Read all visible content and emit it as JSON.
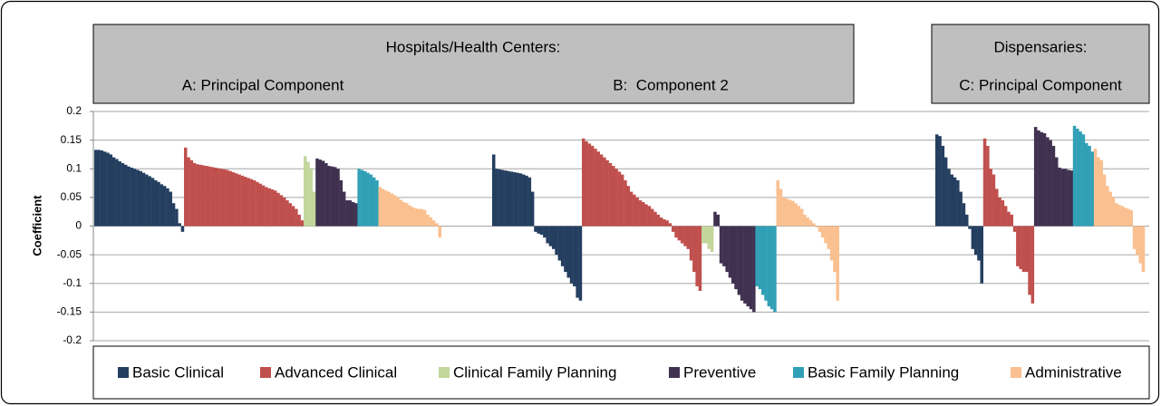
{
  "chart_data": {
    "type": "bar",
    "ylabel": "Coefficient",
    "ylim": [
      -0.2,
      0.2
    ],
    "yticks": [
      0.2,
      0.15,
      0.1,
      0.05,
      0,
      -0.05,
      -0.1,
      -0.15,
      -0.2
    ],
    "grid": true,
    "legend": [
      {
        "name": "Basic Clinical",
        "color": "#243f60"
      },
      {
        "name": "Advanced Clinical",
        "color": "#c0504d"
      },
      {
        "name": "Clinical Family Planning",
        "color": "#c3d69b"
      },
      {
        "name": "Preventive",
        "color": "#403151"
      },
      {
        "name": "Basic Family Planning",
        "color": "#31a0b6"
      },
      {
        "name": "Administrative",
        "color": "#fac090"
      }
    ],
    "headers": [
      {
        "title": "Hospitals/Health Centers:"
      },
      {
        "title": "Dispensaries:"
      }
    ],
    "panels": [
      {
        "title": "A: Principal Component",
        "groups": [
          {
            "values": [
              0.133,
              0.133,
              0.132,
              0.13,
              0.128,
              0.125,
              0.12,
              0.117,
              0.113,
              0.11,
              0.107,
              0.104,
              0.102,
              0.1,
              0.098,
              0.096,
              0.093,
              0.09,
              0.087,
              0.084,
              0.08,
              0.077,
              0.073,
              0.07,
              0.066,
              0.06,
              0.04,
              0.03,
              0.005,
              -0.01
            ]
          },
          {
            "values": [
              0.137,
              0.12,
              0.115,
              0.11,
              0.108,
              0.107,
              0.106,
              0.105,
              0.104,
              0.103,
              0.102,
              0.101,
              0.1,
              0.099,
              0.098,
              0.096,
              0.094,
              0.092,
              0.09,
              0.088,
              0.086,
              0.084,
              0.082,
              0.08,
              0.077,
              0.074,
              0.071,
              0.068,
              0.066,
              0.064,
              0.062,
              0.058,
              0.054,
              0.05,
              0.045,
              0.04,
              0.035,
              0.03,
              0.02,
              0.01
            ]
          },
          {
            "values": [
              0.122,
              0.112,
              0.1,
              0.06
            ]
          },
          {
            "values": [
              0.118,
              0.116,
              0.114,
              0.11,
              0.105,
              0.104,
              0.103,
              0.1,
              0.08,
              0.06,
              0.045,
              0.045,
              0.042,
              0.04
            ]
          },
          {
            "values": [
              0.1,
              0.098,
              0.096,
              0.093,
              0.09,
              0.085,
              0.08
            ]
          },
          {
            "values": [
              0.068,
              0.065,
              0.062,
              0.06,
              0.057,
              0.054,
              0.05,
              0.046,
              0.042,
              0.04,
              0.036,
              0.033,
              0.031,
              0.03,
              0.03,
              0.028,
              0.02,
              0.015,
              0.01,
              0.005,
              -0.02
            ]
          }
        ]
      },
      {
        "title": "B:  Component 2",
        "groups": [
          {
            "values": [
              0.125,
              0.1,
              0.099,
              0.098,
              0.097,
              0.096,
              0.095,
              0.094,
              0.093,
              0.092,
              0.09,
              0.088,
              0.085,
              0.06,
              -0.01,
              -0.013,
              -0.015,
              -0.02,
              -0.03,
              -0.035,
              -0.04,
              -0.05,
              -0.06,
              -0.07,
              -0.08,
              -0.09,
              -0.1,
              -0.105,
              -0.125,
              -0.13
            ]
          },
          {
            "values": [
              0.153,
              0.148,
              0.144,
              0.14,
              0.135,
              0.13,
              0.125,
              0.12,
              0.115,
              0.11,
              0.105,
              0.1,
              0.095,
              0.09,
              0.08,
              0.07,
              0.06,
              0.055,
              0.05,
              0.045,
              0.042,
              0.038,
              0.035,
              0.03,
              0.025,
              0.02,
              0.015,
              0.012,
              0.01,
              0.005,
              -0.01,
              -0.02,
              -0.025,
              -0.03,
              -0.035,
              -0.04,
              -0.06,
              -0.08,
              -0.105,
              -0.113
            ]
          },
          {
            "values": [
              -0.03,
              -0.03,
              -0.04,
              -0.045
            ]
          },
          {
            "values": [
              0.025,
              0.02,
              -0.065,
              -0.07,
              -0.08,
              -0.09,
              -0.1,
              -0.11,
              -0.12,
              -0.13,
              -0.135,
              -0.14,
              -0.145,
              -0.15
            ]
          },
          {
            "values": [
              -0.105,
              -0.11,
              -0.12,
              -0.13,
              -0.14,
              -0.145,
              -0.15
            ]
          },
          {
            "values": [
              0.08,
              0.065,
              0.05,
              0.048,
              0.046,
              0.044,
              0.04,
              0.035,
              0.03,
              0.02,
              0.015,
              0.01,
              0.005,
              -0.002,
              -0.01,
              -0.02,
              -0.03,
              -0.04,
              -0.06,
              -0.08,
              -0.13
            ]
          }
        ]
      },
      {
        "title": "C: Principal Component",
        "groups": [
          {
            "values": [
              0.16,
              0.157,
              0.14,
              0.12,
              0.1,
              0.09,
              0.085,
              0.08,
              0.06,
              0.04,
              0.02,
              -0.005,
              -0.04,
              -0.05,
              -0.06,
              -0.1
            ]
          },
          {
            "values": [
              0.153,
              0.14,
              0.1,
              0.09,
              0.065,
              0.05,
              0.045,
              0.035,
              0.025,
              0.02,
              -0.01,
              -0.07,
              -0.075,
              -0.08,
              -0.08,
              -0.12,
              -0.135
            ]
          },
          {
            "values": []
          },
          {
            "values": [
              0.173,
              0.167,
              0.164,
              0.162,
              0.155,
              0.15,
              0.14,
              0.12,
              0.102,
              0.1,
              0.1,
              0.098,
              0.097
            ]
          },
          {
            "values": [
              0.175,
              0.17,
              0.165,
              0.16,
              0.145,
              0.14,
              0.13
            ]
          },
          {
            "values": [
              0.135,
              0.12,
              0.115,
              0.09,
              0.07,
              0.06,
              0.05,
              0.04,
              0.037,
              0.035,
              0.032,
              0.03,
              0.028,
              -0.04,
              -0.05,
              -0.065,
              -0.08
            ]
          }
        ]
      }
    ]
  }
}
